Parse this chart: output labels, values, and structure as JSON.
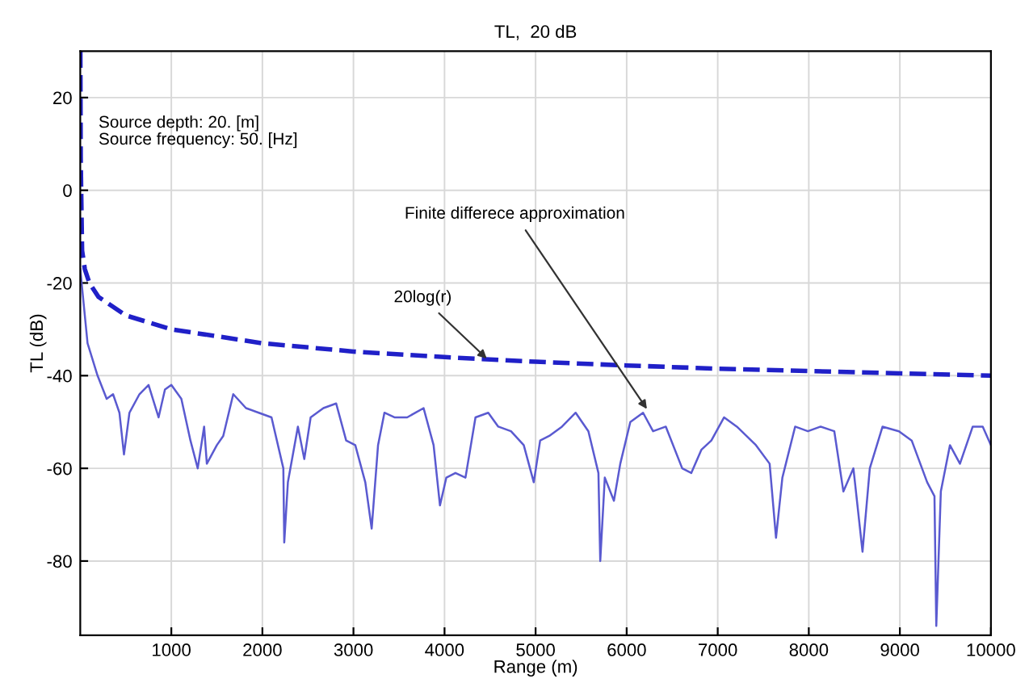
{
  "chart_data": {
    "type": "line",
    "title": "TL,  20 dB",
    "xlabel": "Range (m)",
    "ylabel": "TL (dB)",
    "xlim": [
      0,
      10000
    ],
    "ylim": [
      -96,
      30
    ],
    "xticks": [
      1000,
      2000,
      3000,
      4000,
      5000,
      6000,
      7000,
      8000,
      9000,
      10000
    ],
    "yticks": [
      -80,
      -60,
      -40,
      -20,
      0,
      20
    ],
    "grid": true,
    "annotations": [
      "Source depth: 20. [m]",
      "Source frequency: 50. [Hz]",
      {
        "text": "20log(r)",
        "x": 4500,
        "y": -37
      },
      {
        "text": "Finite differece approximation",
        "x": 6250,
        "y": -48
      }
    ],
    "series": [
      {
        "color": "#2020c8",
        "line_style": "dashed",
        "x": [
          1,
          5,
          10,
          20,
          50,
          100,
          200,
          500,
          1000,
          2000,
          3000,
          4000,
          5000,
          6000,
          7000,
          8000,
          9000,
          10000
        ],
        "values": [
          30,
          7,
          0,
          -13,
          -17,
          -20,
          -23,
          -27,
          -30,
          -33,
          -34.8,
          -36,
          -37,
          -37.8,
          -38.5,
          -39,
          -39.5,
          -40
        ]
      },
      {
        "color": "#5a5ad0",
        "line_style": "solid",
        "x": [
          0,
          80,
          190,
          290,
          360,
          430,
          480,
          540,
          650,
          750,
          860,
          930,
          1000,
          1110,
          1210,
          1290,
          1360,
          1390,
          1500,
          1570,
          1680,
          1820,
          1960,
          2100,
          2230,
          2240,
          2280,
          2390,
          2460,
          2530,
          2670,
          2810,
          2920,
          3020,
          3130,
          3200,
          3270,
          3340,
          3450,
          3590,
          3770,
          3880,
          3950,
          4020,
          4120,
          4230,
          4340,
          4480,
          4590,
          4730,
          4870,
          4980,
          5050,
          5150,
          5290,
          5440,
          5580,
          5690,
          5710,
          5760,
          5860,
          5930,
          6040,
          6180,
          6290,
          6430,
          6610,
          6710,
          6820,
          6930,
          7070,
          7210,
          7420,
          7570,
          7640,
          7710,
          7850,
          7990,
          8130,
          8280,
          8380,
          8490,
          8590,
          8670,
          8810,
          8990,
          9130,
          9300,
          9380,
          9400,
          9450,
          9550,
          9660,
          9800,
          9910,
          10000
        ],
        "values": [
          -17,
          -33,
          -40,
          -45,
          -44,
          -48,
          -57,
          -48,
          -44,
          -42,
          -49,
          -43,
          -42,
          -45,
          -54,
          -60,
          -51,
          -59,
          -55,
          -53,
          -44,
          -47,
          -48,
          -49,
          -60,
          -76,
          -63,
          -51,
          -58,
          -49,
          -47,
          -46,
          -54,
          -55,
          -63,
          -73,
          -55,
          -48,
          -49,
          -49,
          -47,
          -55,
          -68,
          -62,
          -61,
          -62,
          -49,
          -48,
          -51,
          -52,
          -55,
          -63,
          -54,
          -53,
          -51,
          -48,
          -52,
          -61,
          -80,
          -62,
          -67,
          -59,
          -50,
          -48,
          -52,
          -51,
          -60,
          -61,
          -56,
          -54,
          -49,
          -51,
          -55,
          -59,
          -75,
          -62,
          -51,
          -52,
          -51,
          -52,
          -65,
          -60,
          -78,
          -60,
          -51,
          -52,
          -54,
          -63,
          -66,
          -94,
          -65,
          -55,
          -59,
          -51,
          -51,
          -55
        ]
      }
    ]
  }
}
